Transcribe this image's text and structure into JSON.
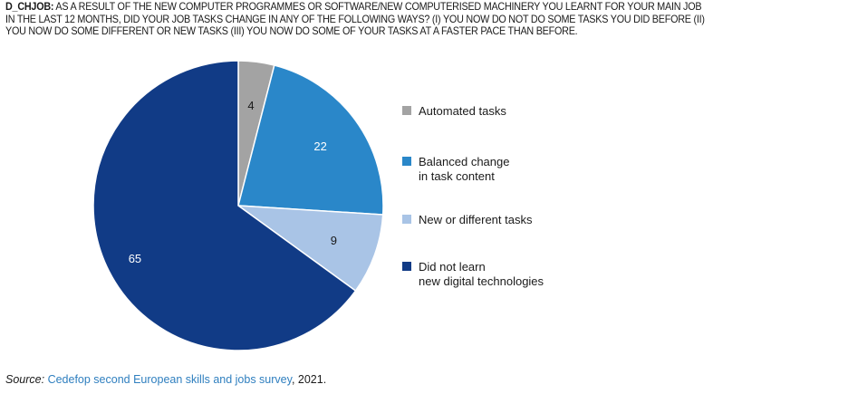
{
  "question": {
    "code": "D_CHJOB:",
    "line1": " AS A RESULT OF THE NEW COMPUTER PROGRAMMES OR SOFTWARE/NEW COMPUTERISED MACHINERY YOU LEARNT FOR YOUR MAIN JOB",
    "line2": "IN THE LAST 12 MONTHS, DID YOUR JOB TASKS CHANGE IN ANY OF THE FOLLOWING WAYS? (I) YOU NOW DO NOT DO SOME TASKS YOU DID BEFORE (II)",
    "line3": "YOU NOW DO SOME DIFFERENT OR NEW TASKS (III) YOU NOW DO SOME OF YOUR TASKS AT A FASTER PACE THAN BEFORE."
  },
  "chart_data": {
    "type": "pie",
    "title": "",
    "slices": [
      {
        "label": "Automated tasks",
        "value": 4,
        "color": "#a3a3a3"
      },
      {
        "label": "Balanced change\nin task content",
        "value": 22,
        "color": "#2a87c9"
      },
      {
        "label": "New or different tasks",
        "value": 9,
        "color": "#a9c4e6"
      },
      {
        "label": "Did not learn\nnew digital technologies",
        "value": 65,
        "color": "#113b86"
      }
    ],
    "legend_position": "right",
    "data_labels": true
  },
  "source": {
    "label": "Source:",
    "text": "Cedefop second European skills and jobs survey",
    "year": ", 2021."
  }
}
